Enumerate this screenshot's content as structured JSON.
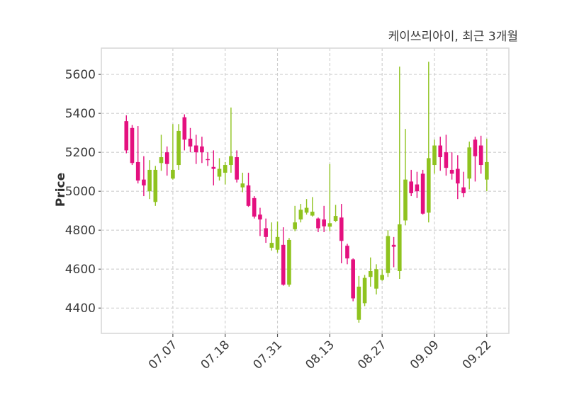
{
  "title": "케이쓰리아이, 최근 3개월",
  "ylabel": "Price",
  "colors": {
    "up": "#8fc31f",
    "down": "#e4107f",
    "grid": "#cdcdcd",
    "spine": "#d9d9d9",
    "tick_mark": "#555555",
    "tick_text": "#3a3a3a",
    "background": "#ffffff"
  },
  "chart_data": {
    "type": "candlestick",
    "title": "케이쓰리아이, 최근 3개월",
    "xlabel": "",
    "ylabel": "Price",
    "grid": "on",
    "grid_style": "dashed",
    "y_ticks": [
      5600,
      5400,
      5200,
      5000,
      4800,
      4600,
      4400
    ],
    "ylim": [
      4270,
      5735
    ],
    "xlim_index": [
      -4.3,
      65.8
    ],
    "x_tick_labels": [
      "07.07",
      "07.18",
      "07.31",
      "08.13",
      "08.27",
      "09.09",
      "09.22"
    ],
    "x_tick_indices": [
      8,
      17,
      26,
      35,
      44,
      53,
      62
    ],
    "x_tick_rotation": 45,
    "dates": [
      "06.25",
      "06.26",
      "06.27",
      "06.30",
      "07.01",
      "07.02",
      "07.03",
      "07.04",
      "07.07",
      "07.08",
      "07.09",
      "07.10",
      "07.11",
      "07.14",
      "07.15",
      "07.16",
      "07.17",
      "07.18",
      "07.21",
      "07.22",
      "07.23",
      "07.24",
      "07.25",
      "07.28",
      "07.29",
      "07.30",
      "07.31",
      "08.01",
      "08.04",
      "08.05",
      "08.06",
      "08.07",
      "08.08",
      "08.11",
      "08.12",
      "08.13",
      "08.14",
      "08.18",
      "08.19",
      "08.20",
      "08.21",
      "08.22",
      "08.25",
      "08.26",
      "08.27",
      "08.28",
      "08.29",
      "09.01",
      "09.02",
      "09.03",
      "09.04",
      "09.05",
      "09.08",
      "09.09",
      "09.10",
      "09.11",
      "09.12",
      "09.15",
      "09.16",
      "09.17",
      "09.18",
      "09.19",
      "09.22"
    ],
    "ohlc": [
      [
        5360,
        5390,
        5195,
        5210
      ],
      [
        5325,
        5340,
        5135,
        5145
      ],
      [
        5150,
        5335,
        5040,
        5055
      ],
      [
        5060,
        5180,
        4975,
        5030
      ],
      [
        5000,
        5160,
        4960,
        5110
      ],
      [
        4945,
        5130,
        4925,
        5110
      ],
      [
        5145,
        5290,
        5105,
        5175
      ],
      [
        5200,
        5230,
        5080,
        5140
      ],
      [
        5065,
        5345,
        5060,
        5110
      ],
      [
        5135,
        5345,
        5110,
        5310
      ],
      [
        5380,
        5395,
        5210,
        5265
      ],
      [
        5270,
        5325,
        5200,
        5230
      ],
      [
        5235,
        5290,
        5140,
        5200
      ],
      [
        5230,
        5280,
        5145,
        5200
      ],
      [
        5165,
        5200,
        5130,
        5160
      ],
      [
        5125,
        5210,
        5030,
        5115
      ],
      [
        5075,
        5170,
        5055,
        5115
      ],
      [
        5095,
        5150,
        5035,
        5135
      ],
      [
        5135,
        5430,
        5095,
        5180
      ],
      [
        5175,
        5210,
        5045,
        5060
      ],
      [
        5020,
        5095,
        4995,
        5040
      ],
      [
        5030,
        5095,
        4920,
        4925
      ],
      [
        4965,
        4975,
        4860,
        4870
      ],
      [
        4880,
        4915,
        4770,
        4855
      ],
      [
        4810,
        4860,
        4735,
        4765
      ],
      [
        4710,
        4840,
        4695,
        4735
      ],
      [
        4700,
        4845,
        4685,
        4765
      ],
      [
        4725,
        4815,
        4515,
        4520
      ],
      [
        4520,
        4760,
        4510,
        4750
      ],
      [
        4805,
        4925,
        4795,
        4840
      ],
      [
        4855,
        4935,
        4840,
        4905
      ],
      [
        4890,
        4960,
        4880,
        4915
      ],
      [
        4875,
        4970,
        4870,
        4895
      ],
      [
        4860,
        4865,
        4790,
        4810
      ],
      [
        4855,
        4925,
        4790,
        4820
      ],
      [
        4818,
        5140,
        4795,
        4836
      ],
      [
        4848,
        4930,
        4842,
        4873
      ],
      [
        4865,
        4935,
        4630,
        4745
      ],
      [
        4720,
        4730,
        4625,
        4655
      ],
      [
        4650,
        4655,
        4435,
        4450
      ],
      [
        4340,
        4565,
        4325,
        4510
      ],
      [
        4425,
        4570,
        4410,
        4555
      ],
      [
        4560,
        4660,
        4510,
        4590
      ],
      [
        4500,
        4625,
        4470,
        4600
      ],
      [
        4545,
        4600,
        4540,
        4570
      ],
      [
        4580,
        4800,
        4560,
        4770
      ],
      [
        4725,
        4765,
        4610,
        4715
      ],
      [
        4590,
        5640,
        4550,
        4830
      ],
      [
        4850,
        5320,
        4825,
        5060
      ],
      [
        5050,
        5110,
        4975,
        4990
      ],
      [
        5035,
        5100,
        4965,
        5000
      ],
      [
        5090,
        5110,
        4880,
        4885
      ],
      [
        4890,
        5665,
        4840,
        5170
      ],
      [
        5135,
        5265,
        5090,
        5235
      ],
      [
        5235,
        5280,
        5105,
        5175
      ],
      [
        5200,
        5290,
        5080,
        5120
      ],
      [
        5110,
        5200,
        5060,
        5090
      ],
      [
        5115,
        5185,
        4960,
        5040
      ],
      [
        5020,
        5100,
        4970,
        4990
      ],
      [
        5065,
        5255,
        5010,
        5225
      ],
      [
        5265,
        5280,
        5050,
        5180
      ],
      [
        5235,
        5285,
        5090,
        5135
      ],
      [
        5060,
        5270,
        5000,
        5150
      ]
    ]
  }
}
